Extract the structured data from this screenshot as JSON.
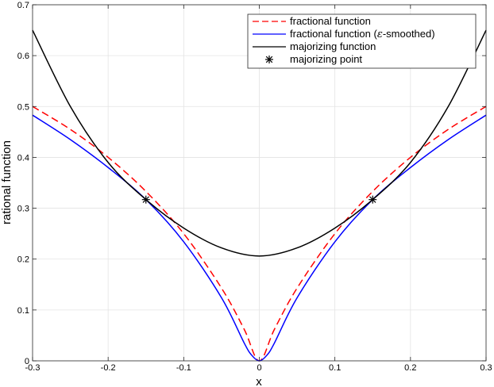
{
  "chart_data": {
    "type": "line",
    "title": "",
    "xlabel": "x",
    "ylabel": "rational function",
    "xlim": [
      -0.3,
      0.3
    ],
    "ylim": [
      0,
      0.7
    ],
    "xticks": [
      "-0.3",
      "-0.2",
      "-0.1",
      "0",
      "0.1",
      "0.2",
      "0.3"
    ],
    "yticks": [
      "0",
      "0.1",
      "0.2",
      "0.3",
      "0.4",
      "0.5",
      "0.6",
      "0.7"
    ],
    "grid": true,
    "legend_position": "top-right",
    "legend": [
      {
        "label": "fractional function",
        "style": "dashed",
        "color": "#ff0000"
      },
      {
        "label_pre": "fractional function (",
        "label_sym": "ε",
        "label_post": "-smoothed)",
        "style": "solid",
        "color": "#0000ff"
      },
      {
        "label": "majorizing function",
        "style": "solid",
        "color": "#000000"
      },
      {
        "label": "majorizing point",
        "style": "marker",
        "marker": "*",
        "color": "#000000"
      }
    ],
    "series": [
      {
        "name": "fractional function",
        "color": "#ff0000",
        "style": "dashed",
        "x": [
          -0.3,
          -0.25,
          -0.2,
          -0.15,
          -0.1,
          -0.05,
          -0.02,
          0,
          0.02,
          0.05,
          0.1,
          0.15,
          0.2,
          0.25,
          0.3
        ],
        "y": [
          0.5,
          0.455,
          0.4,
          0.333,
          0.25,
          0.143,
          0.062,
          0,
          0.062,
          0.143,
          0.25,
          0.333,
          0.4,
          0.455,
          0.5
        ]
      },
      {
        "name": "fractional function (ε-smoothed)",
        "color": "#0000ff",
        "style": "solid",
        "x": [
          -0.3,
          -0.25,
          -0.2,
          -0.15,
          -0.1,
          -0.05,
          -0.02,
          -0.01,
          0,
          0.01,
          0.02,
          0.05,
          0.1,
          0.15,
          0.2,
          0.25,
          0.3
        ],
        "y": [
          0.483,
          0.435,
          0.38,
          0.317,
          0.234,
          0.124,
          0.035,
          0.011,
          0.0,
          0.011,
          0.035,
          0.124,
          0.234,
          0.317,
          0.38,
          0.435,
          0.483
        ]
      },
      {
        "name": "majorizing function",
        "color": "#000000",
        "style": "solid",
        "x": [
          -0.3,
          -0.25,
          -0.2,
          -0.15,
          -0.1,
          -0.05,
          0,
          0.05,
          0.1,
          0.15,
          0.2,
          0.25,
          0.3
        ],
        "y": [
          0.65,
          0.5,
          0.39,
          0.317,
          0.261,
          0.222,
          0.206,
          0.222,
          0.261,
          0.317,
          0.39,
          0.5,
          0.65
        ]
      },
      {
        "name": "majorizing point",
        "color": "#000000",
        "style": "marker",
        "x": [
          -0.15,
          0.15
        ],
        "y": [
          0.317,
          0.317
        ]
      }
    ]
  }
}
